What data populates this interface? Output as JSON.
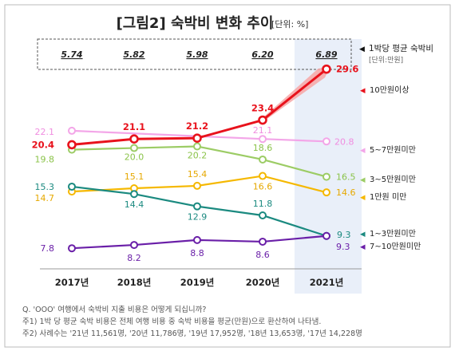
{
  "title": "[그림2] 숙박비 변화 추이",
  "unit": "[단위: %]",
  "avg_cost": {
    "label": "1박당 평균 숙박비",
    "unit": "[단위:만원]",
    "values": [
      "5.74",
      "5.82",
      "5.98",
      "6.20",
      "6.89"
    ]
  },
  "chart_data": {
    "type": "line",
    "title": "[그림2] 숙박비 변화 추이",
    "unit": "[단위: %]",
    "categories": [
      "2017년",
      "2018년",
      "2019년",
      "2020년",
      "2021년"
    ],
    "highlight_category": "2021년",
    "legend_position": "right",
    "grid": false,
    "series": [
      {
        "name": "10만원이상",
        "values": [
          20.4,
          21.1,
          21.2,
          23.4,
          29.6
        ],
        "color": "#e8121c"
      },
      {
        "name": "5~7만원미만",
        "values": [
          22.1,
          null,
          null,
          21.1,
          20.8
        ],
        "color": "#f3a6e8"
      },
      {
        "name": "3~5만원미만",
        "values": [
          19.8,
          20.0,
          20.2,
          18.6,
          16.5
        ],
        "color": "#9ccc65"
      },
      {
        "name": "1만원 미만",
        "values": [
          14.7,
          15.1,
          15.4,
          16.6,
          14.6
        ],
        "color": "#f5b800"
      },
      {
        "name": "1~3만원미만",
        "values": [
          15.3,
          14.4,
          12.9,
          11.8,
          9.3
        ],
        "color": "#1b8a80"
      },
      {
        "name": "7~10만원미만",
        "values": [
          7.8,
          8.2,
          8.8,
          8.6,
          9.3
        ],
        "color": "#6a1fa8"
      }
    ]
  },
  "notes": [
    "Q. 'OOO' 여행에서 숙박비 지출 비용은 어떻게 되십니까?",
    "주1) 1박 당 평균 숙박 비용은 전체 여행 비용 중 숙박 비용을 평균(만원)으로 환산하여 나타냄.",
    "주2) 사례수는 '21년 11,561명, '20년 11,786명, '19년 17,952명, '18년 13,653명, '17년 14,228명"
  ],
  "colors": {
    "frame_border": "#bbbbbb",
    "highlight_band": "#e9eff9",
    "title_text": "#222222"
  }
}
